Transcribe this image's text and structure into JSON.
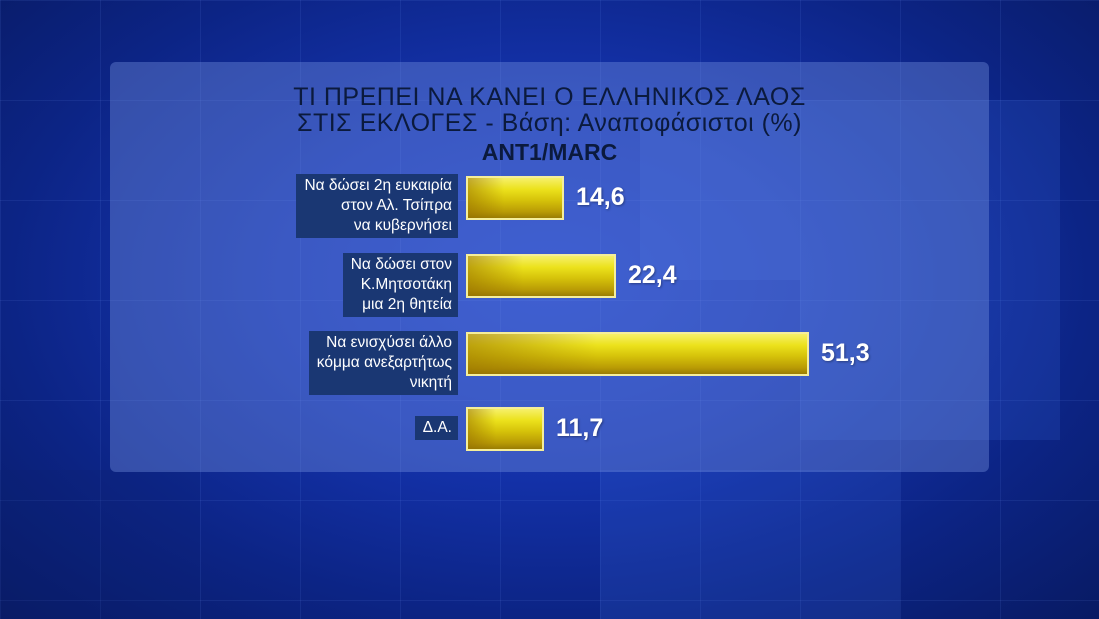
{
  "chart_data": {
    "type": "bar",
    "orientation": "horizontal",
    "title": [
      "ΤΙ ΠΡΕΠΕΙ ΝΑ ΚΑΝΕΙ Ο ΕΛΛΗΝΙΚΟΣ ΛΑΟΣ",
      "ΣΤΙΣ ΕΚΛΟΓΕΣ - Βάση: Αναποφάσιστοι (%)"
    ],
    "subtitle": "ANT1/MARC",
    "categories": [
      "Να δώσει 2η ευκαιρία\nστον Αλ. Τσίπρα\nνα κυβερνήσει",
      "Να δώσει στον\nΚ.Μητσοτάκη\nμια 2η θητεία",
      "Να ενισχύσει άλλο\nκόμμα ανεξαρτήτως\nνικητή",
      "Δ.Α."
    ],
    "values": [
      14.6,
      22.4,
      51.3,
      11.7
    ],
    "value_labels": [
      "14,6",
      "22,4",
      "51,3",
      "11,7"
    ],
    "bar_color": "#e8dc1a",
    "xlim": [
      0,
      51.3
    ],
    "grid": false
  }
}
